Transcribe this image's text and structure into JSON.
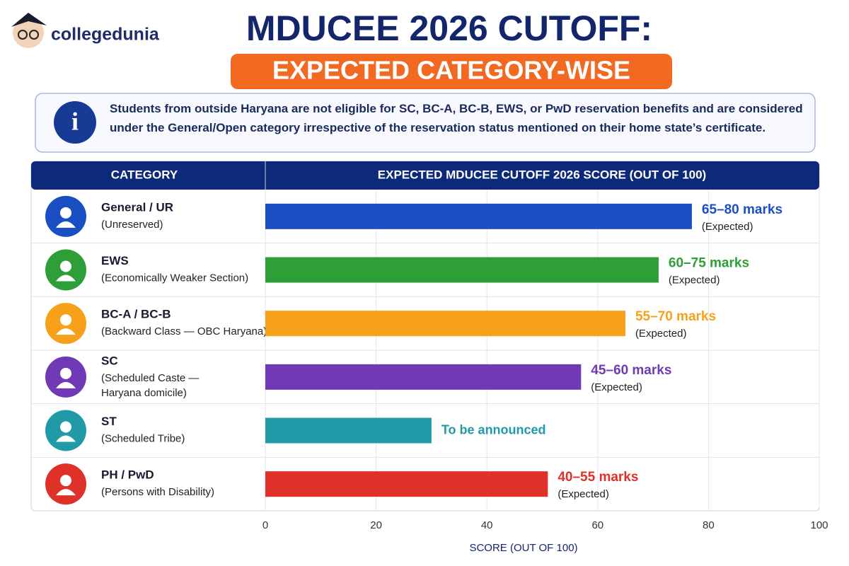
{
  "brand": "collegedunia",
  "title": "MDUCEE 2026 CUTOFF:",
  "subtitle": "EXPECTED CATEGORY-WISE",
  "note": "Students from outside Haryana are not eligible for SC, BC-A, BC-B, EWS, or PwD reservation benefits and are considered under the General/Open category irrespective of the reservation status mentioned on their home state’s certificate.",
  "chart_data": {
    "type": "bar",
    "orientation": "horizontal",
    "category_header": "CATEGORY",
    "title": "EXPECTED MDUCEE CUTOFF 2026 SCORE (OUT OF 100)",
    "xlabel": "SCORE (OUT OF 100)",
    "categories": [
      "General / UR",
      "EWS",
      "BC-A / BC-B",
      "SC",
      "ST",
      "PH / PwD"
    ],
    "category_notes": [
      [
        "(Unreserved)"
      ],
      [
        "(Economically Weaker Section)"
      ],
      [
        "(Backward Class — OBC Haryana)"
      ],
      [
        "(Scheduled Caste —",
        "Haryana domicile)"
      ],
      [
        "(Scheduled Tribe)"
      ],
      [
        "(Persons with Disability)"
      ]
    ],
    "values": [
      77,
      71,
      65,
      57,
      30,
      51
    ],
    "colors": [
      "#1a4fc4",
      "#2e9e36",
      "#f7a01a",
      "#7039b5",
      "#1f9aa6",
      "#e0302a"
    ],
    "annotations": [
      {
        "text": "65–80 marks",
        "sub": "(Expected)"
      },
      {
        "text": "60–75 marks",
        "sub": "(Expected)"
      },
      {
        "text": "55–70 marks",
        "sub": "(Expected)"
      },
      {
        "text": "45–60 marks",
        "sub": "(Expected)"
      },
      {
        "text": "To be announced"
      },
      {
        "text": "40–55 marks",
        "sub": "(Expected)"
      }
    ],
    "xlim": [
      0,
      100
    ],
    "xticks": [
      0,
      20,
      40,
      60,
      80,
      100
    ],
    "grid": true
  }
}
